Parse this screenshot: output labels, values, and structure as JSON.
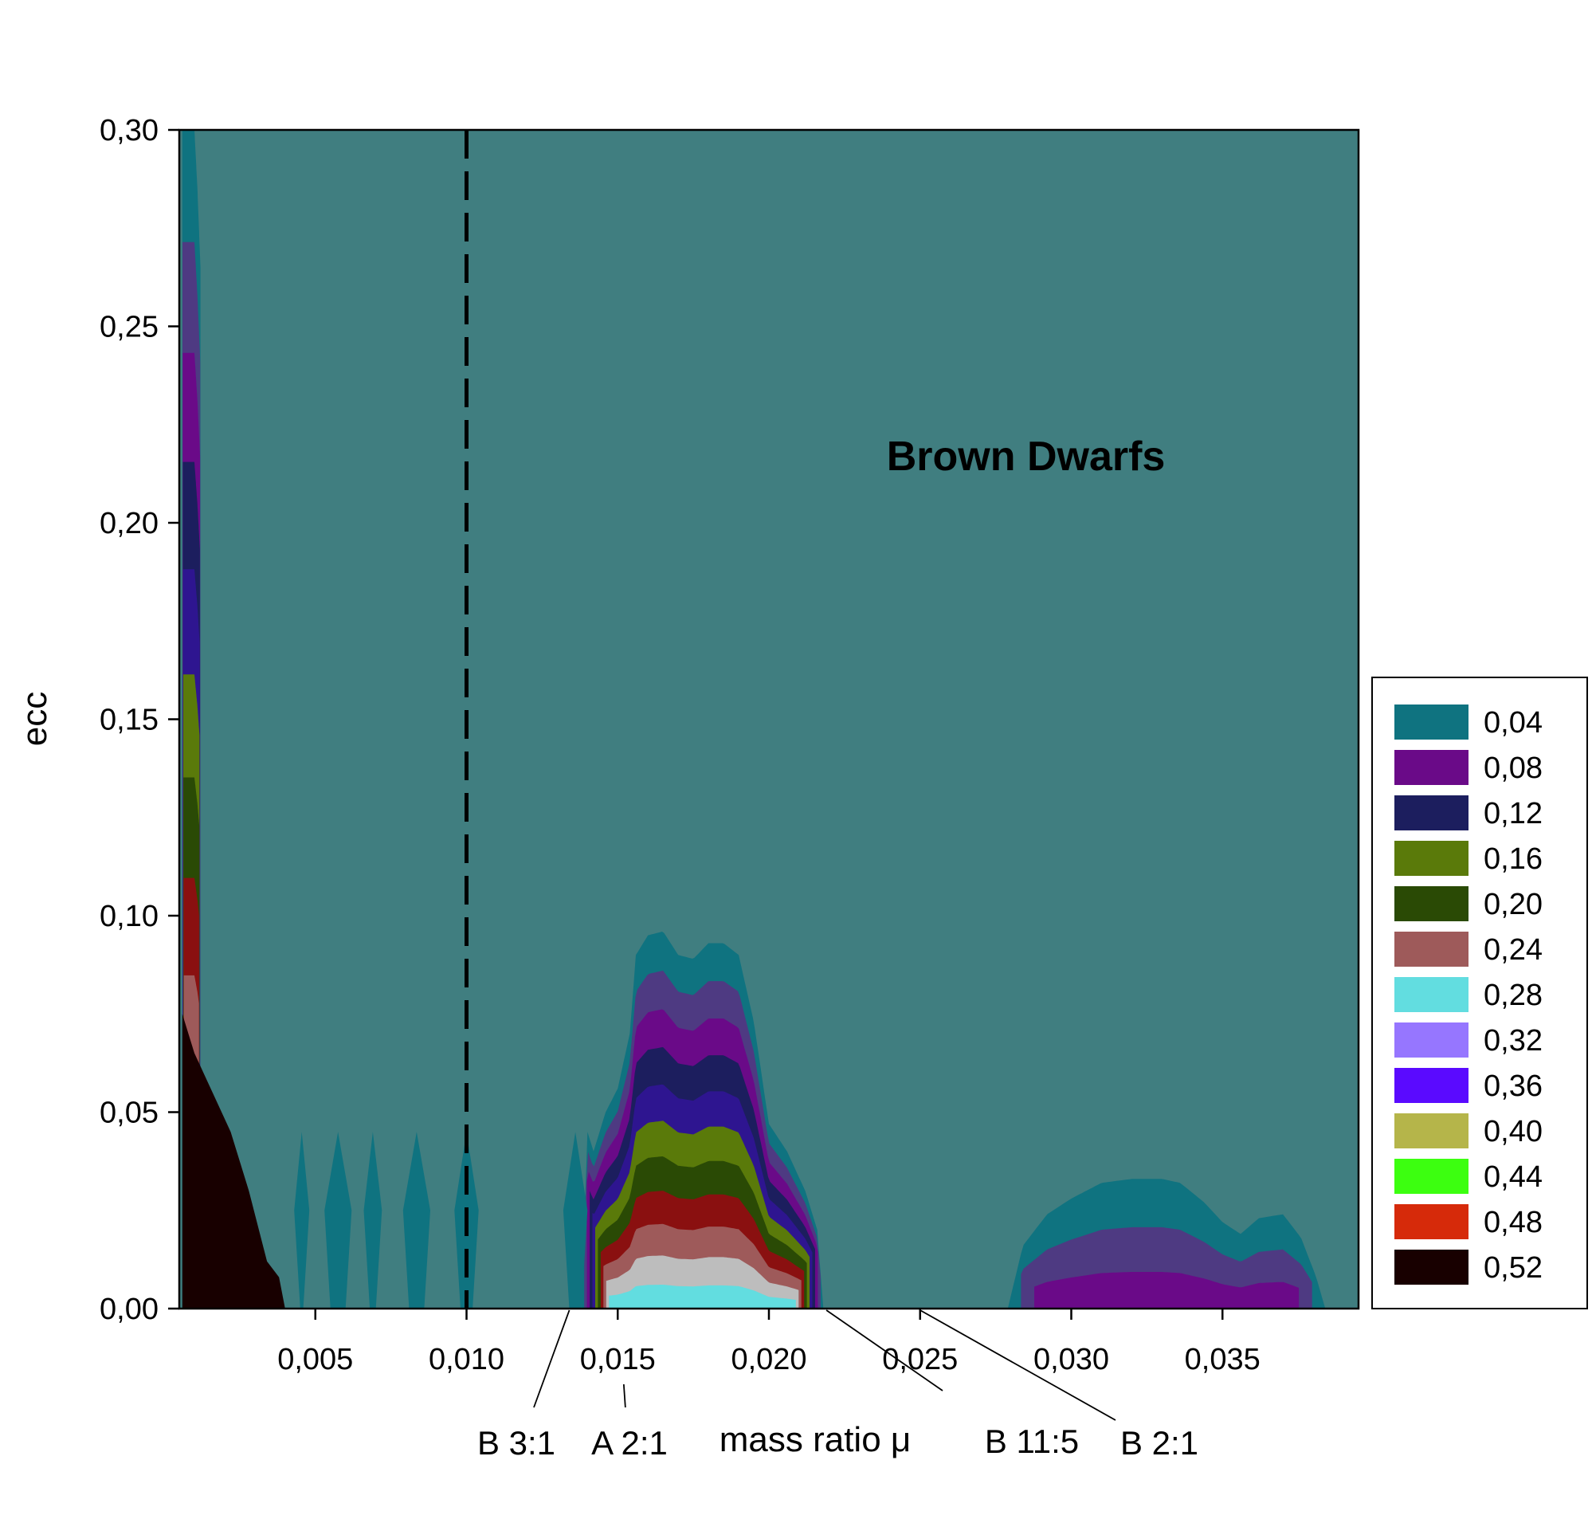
{
  "chart_data": {
    "type": "contour",
    "xlabel": "mass ratio μ",
    "ylabel": "ecc",
    "xlim": [
      0.0005,
      0.0395
    ],
    "ylim": [
      0.0,
      0.3
    ],
    "x_ticks": [
      {
        "value": 0.005,
        "label": "0,005"
      },
      {
        "value": 0.01,
        "label": "0,010"
      },
      {
        "value": 0.015,
        "label": "0,015"
      },
      {
        "value": 0.02,
        "label": "0,020"
      },
      {
        "value": 0.025,
        "label": "0,025"
      },
      {
        "value": 0.03,
        "label": "0,030"
      },
      {
        "value": 0.035,
        "label": "0,035"
      }
    ],
    "y_ticks": [
      {
        "value": 0.0,
        "label": "0,00"
      },
      {
        "value": 0.05,
        "label": "0,05"
      },
      {
        "value": 0.1,
        "label": "0,10"
      },
      {
        "value": 0.15,
        "label": "0,15"
      },
      {
        "value": 0.2,
        "label": "0,20"
      },
      {
        "value": 0.25,
        "label": "0,25"
      },
      {
        "value": 0.3,
        "label": "0,30"
      }
    ],
    "background_color": "#407e80",
    "region_label": {
      "text": "Brown Dwarfs",
      "x": 0.0285,
      "y": 0.217
    },
    "vertical_line": {
      "x": 0.01,
      "style": "dashed"
    },
    "resonances": [
      {
        "label": "B 3:1",
        "x": 0.0134
      },
      {
        "label": "A 2:1",
        "x": 0.0152
      },
      {
        "label": "B 11:5",
        "x": 0.0219
      },
      {
        "label": "B 2:1",
        "x": 0.025
      }
    ],
    "legend_placement": "right",
    "levels": [
      {
        "value": "0,04",
        "color": "#0f7380"
      },
      {
        "value": "0,08",
        "color": "#6a0a88"
      },
      {
        "value": "0,12",
        "color": "#1c1e5e"
      },
      {
        "value": "0,16",
        "color": "#5a7a0a"
      },
      {
        "value": "0,20",
        "color": "#2a4a05"
      },
      {
        "value": "0,24",
        "color": "#9e5a5a"
      },
      {
        "value": "0,28",
        "color": "#62dde0"
      },
      {
        "value": "0,32",
        "color": "#9676ff"
      },
      {
        "value": "0,36",
        "color": "#5a0aff"
      },
      {
        "value": "0,40",
        "color": "#b5b54a"
      },
      {
        "value": "0,44",
        "color": "#3cff10"
      },
      {
        "value": "0,48",
        "color": "#d62a0a"
      },
      {
        "value": "0,52",
        "color": "#180000"
      }
    ],
    "extra_band_colors": [
      "#4e3a82",
      "#2e1590",
      "#8a1010",
      "#bdbdbd",
      "#2af0ff",
      "#ff10ff",
      "#2a2ad5",
      "#cfff10",
      "#6c6c2a"
    ]
  }
}
